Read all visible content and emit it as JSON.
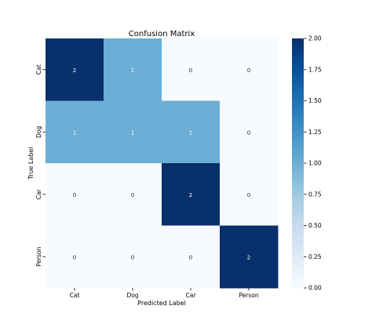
{
  "chart_data": {
    "type": "heatmap",
    "title": "Confusion Matrix",
    "xlabel": "Predicted Label",
    "ylabel": "True Label",
    "x_categories": [
      "Cat",
      "Dog",
      "Car",
      "Person"
    ],
    "y_categories": [
      "Cat",
      "Dog",
      "Car",
      "Person"
    ],
    "values": [
      [
        2,
        1,
        0,
        0
      ],
      [
        1,
        1,
        1,
        0
      ],
      [
        0,
        0,
        2,
        0
      ],
      [
        0,
        0,
        0,
        2
      ]
    ],
    "vmin": 0,
    "vmax": 2,
    "colormap": "Blues",
    "colorbar_ticks": [
      "0.00",
      "0.25",
      "0.50",
      "0.75",
      "1.00",
      "1.25",
      "1.50",
      "1.75",
      "2.00"
    ],
    "colors": {
      "low": "#f7fbff",
      "mid": "#6baed6",
      "high": "#08306b",
      "text_light": "#ffffff",
      "text_dark": "#262626"
    }
  }
}
